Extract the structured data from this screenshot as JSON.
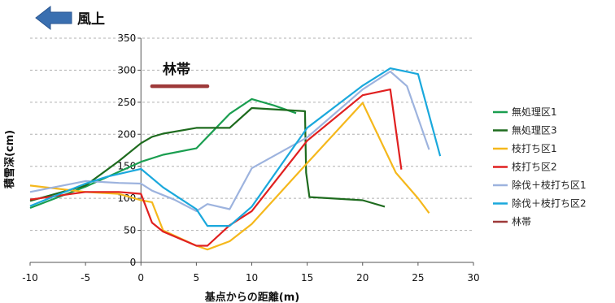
{
  "chart_data": {
    "type": "line",
    "xlabel": "基点からの距離(m)",
    "ylabel": "積雪深(cm)",
    "xlim": [
      -10,
      30
    ],
    "ylim": [
      0,
      350
    ],
    "xticks": [
      -10,
      -5,
      0,
      5,
      10,
      15,
      20,
      25,
      30
    ],
    "yticks": [
      0,
      50,
      100,
      150,
      200,
      250,
      300,
      350
    ],
    "grid": "horizontal dashed",
    "legend_position": "right",
    "annotations": {
      "wind_label": "風上",
      "forest_label": "林帯"
    },
    "series": [
      {
        "name": "無処理区1",
        "color": "#1a9e50",
        "points": [
          [
            -10,
            85
          ],
          [
            -5,
            118
          ],
          [
            0,
            157
          ],
          [
            2,
            168
          ],
          [
            5,
            178
          ],
          [
            8,
            232
          ],
          [
            10,
            255
          ],
          [
            12,
            245
          ],
          [
            14,
            233
          ]
        ]
      },
      {
        "name": "無処理区3",
        "color": "#1e6b1e",
        "points": [
          [
            -10,
            96
          ],
          [
            -5,
            120
          ],
          [
            -2,
            158
          ],
          [
            0,
            186
          ],
          [
            1,
            196
          ],
          [
            2,
            201
          ],
          [
            5,
            210
          ],
          [
            8,
            210
          ],
          [
            10,
            241
          ],
          [
            14.8,
            236
          ],
          [
            14.9,
            140
          ],
          [
            15.2,
            102
          ],
          [
            20,
            97
          ],
          [
            22,
            87
          ]
        ]
      },
      {
        "name": "枝打ち区1",
        "color": "#f5b81c",
        "points": [
          [
            -10,
            120
          ],
          [
            -5,
            110
          ],
          [
            -2,
            107
          ],
          [
            0,
            97
          ],
          [
            1,
            94
          ],
          [
            2,
            50
          ],
          [
            5,
            26
          ],
          [
            6,
            20
          ],
          [
            8,
            33
          ],
          [
            10,
            60
          ],
          [
            15,
            155
          ],
          [
            20,
            249
          ],
          [
            23,
            140
          ],
          [
            25,
            100
          ],
          [
            26,
            77
          ]
        ]
      },
      {
        "name": "枝打ち区2",
        "color": "#e02020",
        "points": [
          [
            -10,
            98
          ],
          [
            -5,
            110
          ],
          [
            -2,
            110
          ],
          [
            0,
            107
          ],
          [
            1,
            62
          ],
          [
            2,
            48
          ],
          [
            5,
            26
          ],
          [
            6,
            26
          ],
          [
            8,
            58
          ],
          [
            10,
            80
          ],
          [
            15,
            190
          ],
          [
            20,
            261
          ],
          [
            22.5,
            270
          ],
          [
            23.5,
            145
          ]
        ]
      },
      {
        "name": "除伐＋枝打ち区1",
        "color": "#9db3de",
        "points": [
          [
            -10,
            110
          ],
          [
            -5,
            127
          ],
          [
            -2,
            124
          ],
          [
            0,
            123
          ],
          [
            1,
            112
          ],
          [
            3,
            98
          ],
          [
            5,
            80
          ],
          [
            6,
            91
          ],
          [
            8,
            83
          ],
          [
            10,
            147
          ],
          [
            15,
            195
          ],
          [
            20,
            270
          ],
          [
            22.5,
            298
          ],
          [
            24,
            275
          ],
          [
            26,
            176
          ]
        ]
      },
      {
        "name": "除伐＋枝打ち区2",
        "color": "#1aa8dc",
        "points": [
          [
            -10,
            88
          ],
          [
            -5,
            123
          ],
          [
            -3,
            134
          ],
          [
            0,
            146
          ],
          [
            2,
            117
          ],
          [
            5,
            83
          ],
          [
            6,
            57
          ],
          [
            8,
            57
          ],
          [
            10,
            87
          ],
          [
            15,
            210
          ],
          [
            20,
            276
          ],
          [
            22.5,
            303
          ],
          [
            25,
            294
          ],
          [
            27,
            166
          ]
        ]
      },
      {
        "name": "林帯",
        "color": "#9e3a3a",
        "points": [
          [
            1,
            275
          ],
          [
            6,
            275
          ]
        ]
      }
    ]
  }
}
